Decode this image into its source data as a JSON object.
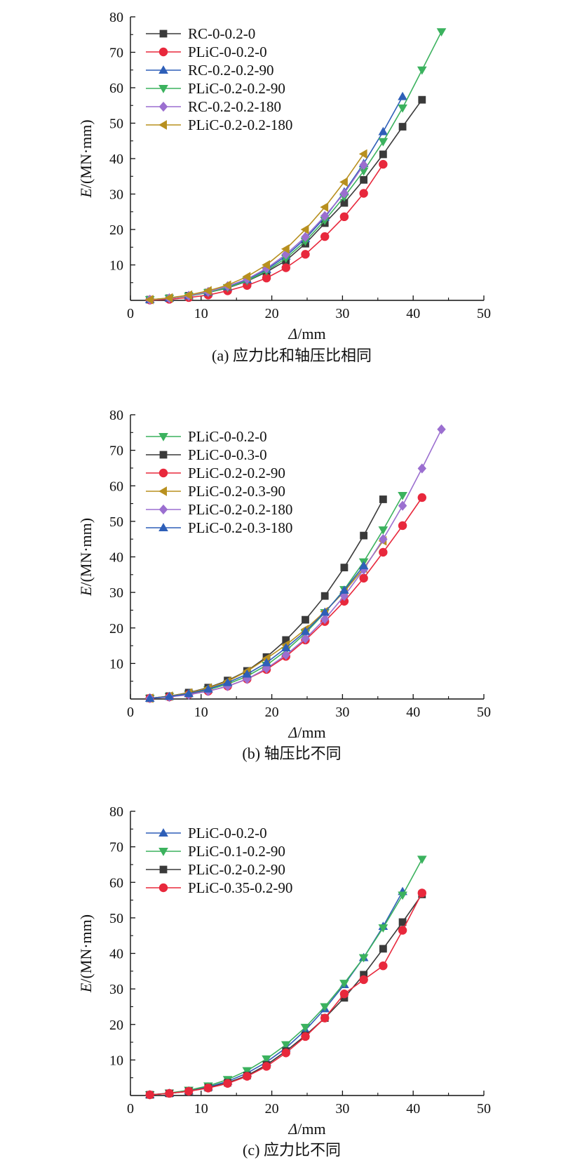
{
  "chart_data": [
    {
      "type": "line",
      "caption": "(a) 应力比和轴压比相同",
      "xlabel_italic": "Δ",
      "xlabel_unit": "/mm",
      "ylabel_italic": "E",
      "ylabel_unit": "/(MN·mm)",
      "xlim": [
        0,
        50
      ],
      "ylim": [
        0,
        80
      ],
      "xticks": [
        "0",
        "10",
        "20",
        "30",
        "40",
        "50"
      ],
      "yticks": [
        "10",
        "20",
        "30",
        "40",
        "50",
        "60",
        "70",
        "80"
      ],
      "legend_position": "top-left",
      "series": [
        {
          "name": "RC-0-0.2-0",
          "color": "#3a3a3a",
          "marker": "square",
          "x": [
            2.75,
            5.5,
            8.25,
            11,
            13.75,
            16.5,
            19.25,
            22,
            24.75,
            27.5,
            30.25,
            33,
            35.75,
            38.5,
            41.25
          ],
          "y": [
            0.2,
            0.6,
            1.3,
            2.2,
            3.5,
            5.4,
            8.0,
            11.2,
            16.0,
            21.8,
            27.5,
            34.0,
            41.2,
            49.0,
            56.6
          ]
        },
        {
          "name": "PLiC-0-0.2-0",
          "color": "#e8283c",
          "marker": "circle",
          "x": [
            2.75,
            5.5,
            8.25,
            11,
            13.75,
            16.5,
            19.25,
            22,
            24.75,
            27.5,
            30.25,
            33,
            35.75
          ],
          "y": [
            0.1,
            0.3,
            0.8,
            1.5,
            2.7,
            4.2,
            6.3,
            9.2,
            13.0,
            18.0,
            23.6,
            30.2,
            38.4
          ]
        },
        {
          "name": "RC-0.2-0.2-90",
          "color": "#2e5fb8",
          "marker": "triangle-up",
          "x": [
            2.75,
            5.5,
            8.25,
            11,
            13.75,
            16.5,
            19.25,
            22,
            24.75,
            27.5,
            30.25,
            33,
            35.75,
            38.5
          ],
          "y": [
            0.2,
            0.6,
            1.3,
            2.3,
            3.8,
            5.8,
            8.7,
            12.5,
            17.4,
            23.4,
            30.6,
            38.6,
            47.6,
            57.5
          ]
        },
        {
          "name": "PLiC-0.2-0.2-90",
          "color": "#3bb25e",
          "marker": "triangle-down",
          "x": [
            2.75,
            5.5,
            8.25,
            11,
            13.75,
            16.5,
            19.25,
            22,
            24.75,
            27.5,
            30.25,
            33,
            35.75,
            38.5,
            41.25,
            44
          ],
          "y": [
            0.2,
            0.6,
            1.2,
            2.2,
            3.6,
            5.5,
            8.3,
            11.9,
            16.7,
            22.6,
            29.2,
            36.5,
            44.8,
            54.3,
            65.0,
            75.8
          ]
        },
        {
          "name": "RC-0.2-0.2-180",
          "color": "#9b6fd0",
          "marker": "diamond",
          "x": [
            2.75,
            5.5,
            8.25,
            11,
            13.75,
            16.5,
            19.25,
            22,
            24.75,
            27.5,
            30.25,
            33
          ],
          "y": [
            0.2,
            0.6,
            1.3,
            2.4,
            4.0,
            6.0,
            9.0,
            13.0,
            17.9,
            23.8,
            30.2,
            38.2
          ]
        },
        {
          "name": "PLiC-0.2-0.2-180",
          "color": "#b8901f",
          "marker": "triangle-left",
          "x": [
            2.75,
            5.5,
            8.25,
            11,
            13.75,
            16.5,
            19.25,
            22,
            24.75,
            27.5,
            30.25,
            33
          ],
          "y": [
            0.2,
            0.7,
            1.5,
            2.7,
            4.3,
            6.7,
            10.0,
            14.5,
            20.0,
            26.3,
            33.4,
            41.3
          ]
        }
      ]
    },
    {
      "type": "line",
      "caption": "(b) 轴压比不同",
      "xlabel_italic": "Δ",
      "xlabel_unit": "/mm",
      "ylabel_italic": "E",
      "ylabel_unit": "/(MN·mm)",
      "xlim": [
        0,
        50
      ],
      "ylim": [
        0,
        80
      ],
      "xticks": [
        "0",
        "10",
        "20",
        "30",
        "40",
        "50"
      ],
      "yticks": [
        "10",
        "20",
        "30",
        "40",
        "50",
        "60",
        "70",
        "80"
      ],
      "legend_position": "top-left",
      "series": [
        {
          "name": "PLiC-0-0.2-0",
          "color": "#3bb25e",
          "marker": "triangle-down",
          "x": [
            2.75,
            5.5,
            8.25,
            11,
            13.75,
            16.5,
            19.25,
            22,
            24.75,
            27.5,
            30.25,
            33,
            35.75,
            38.5
          ],
          "y": [
            0.2,
            0.7,
            1.4,
            2.6,
            4.2,
            6.4,
            9.5,
            13.6,
            18.5,
            24.3,
            30.8,
            38.6,
            47.6,
            57.3
          ]
        },
        {
          "name": "PLiC-0-0.3-0",
          "color": "#3a3a3a",
          "marker": "square",
          "x": [
            2.75,
            5.5,
            8.25,
            11,
            13.75,
            16.5,
            19.25,
            22,
            24.75,
            27.5,
            30.25,
            33,
            35.75
          ],
          "y": [
            0.2,
            0.8,
            1.8,
            3.2,
            5.2,
            7.9,
            11.8,
            16.6,
            22.3,
            29.0,
            37.0,
            46.0,
            56.2
          ]
        },
        {
          "name": "PLiC-0.2-0.2-90",
          "color": "#e8283c",
          "marker": "circle",
          "x": [
            2.75,
            5.5,
            8.25,
            11,
            13.75,
            16.5,
            19.25,
            22,
            24.75,
            27.5,
            30.25,
            33,
            35.75,
            38.5,
            41.25
          ],
          "y": [
            0.2,
            0.6,
            1.3,
            2.2,
            3.6,
            5.6,
            8.3,
            12.0,
            16.6,
            21.8,
            27.5,
            34.0,
            41.3,
            48.8,
            56.7
          ]
        },
        {
          "name": "PLiC-0.2-0.3-90",
          "color": "#b8901f",
          "marker": "triangle-left",
          "x": [
            2.75,
            5.5,
            8.25,
            11,
            13.75,
            16.5,
            19.25,
            22,
            24.75,
            27.5,
            30.25,
            33,
            35.75
          ],
          "y": [
            0.2,
            0.8,
            1.7,
            3.1,
            5.0,
            7.8,
            11.4,
            15.2,
            19.6,
            24.6,
            30.2,
            36.8,
            44.5
          ]
        },
        {
          "name": "PLiC-0.2-0.2-180",
          "color": "#9b6fd0",
          "marker": "diamond",
          "x": [
            2.75,
            5.5,
            8.25,
            11,
            13.75,
            16.5,
            19.25,
            22,
            24.75,
            27.5,
            30.25,
            33,
            35.75,
            38.5,
            41.25,
            44
          ],
          "y": [
            0.2,
            0.6,
            1.2,
            2.2,
            3.6,
            5.6,
            8.6,
            12.4,
            17.0,
            22.5,
            29.0,
            36.4,
            45.0,
            54.4,
            64.9,
            75.9
          ]
        },
        {
          "name": "PLiC-0.2-0.3-180",
          "color": "#2e5fb8",
          "marker": "triangle-up",
          "x": [
            2.75,
            5.5,
            8.25,
            11,
            13.75,
            16.5,
            19.25,
            22,
            24.75,
            27.5,
            30.25,
            33
          ],
          "y": [
            0.2,
            0.7,
            1.5,
            2.8,
            4.6,
            7.0,
            10.2,
            14.4,
            19.0,
            24.4,
            30.6,
            37.5
          ]
        }
      ]
    },
    {
      "type": "line",
      "caption": "(c) 应力比不同",
      "xlabel_italic": "Δ",
      "xlabel_unit": "/mm",
      "ylabel_italic": "E",
      "ylabel_unit": "/(MN·mm)",
      "xlim": [
        0,
        50
      ],
      "ylim": [
        0,
        80
      ],
      "xticks": [
        "0",
        "10",
        "20",
        "30",
        "40",
        "50"
      ],
      "yticks": [
        "10",
        "20",
        "30",
        "40",
        "50",
        "60",
        "70",
        "80"
      ],
      "legend_position": "top-left",
      "series": [
        {
          "name": "PLiC-0-0.2-0",
          "color": "#2e5fb8",
          "marker": "triangle-up",
          "x": [
            2.75,
            5.5,
            8.25,
            11,
            13.75,
            16.5,
            19.25,
            22,
            24.75,
            27.5,
            30.25,
            33,
            35.75,
            38.5
          ],
          "y": [
            0.2,
            0.6,
            1.3,
            2.4,
            4.0,
            6.3,
            9.4,
            13.4,
            18.4,
            24.4,
            31.2,
            38.8,
            47.6,
            57.4
          ]
        },
        {
          "name": "PLiC-0.1-0.2-90",
          "color": "#3bb25e",
          "marker": "triangle-down",
          "x": [
            2.75,
            5.5,
            8.25,
            11,
            13.75,
            16.5,
            19.25,
            22,
            24.75,
            27.5,
            30.25,
            33,
            35.75,
            38.5,
            41.25
          ],
          "y": [
            0.2,
            0.7,
            1.5,
            2.7,
            4.5,
            7.0,
            10.3,
            14.3,
            19.2,
            25.0,
            31.6,
            38.8,
            47.2,
            56.4,
            66.5
          ]
        },
        {
          "name": "PLiC-0.2-0.2-90",
          "color": "#3a3a3a",
          "marker": "square",
          "x": [
            2.75,
            5.5,
            8.25,
            11,
            13.75,
            16.5,
            19.25,
            22,
            24.75,
            27.5,
            30.25,
            33,
            35.75,
            38.5,
            41.25
          ],
          "y": [
            0.2,
            0.6,
            1.2,
            2.2,
            3.6,
            5.6,
            8.6,
            12.5,
            16.9,
            21.8,
            27.5,
            34.0,
            41.3,
            48.8,
            56.6
          ]
        },
        {
          "name": "PLiC-0.35-0.2-90",
          "color": "#e8283c",
          "marker": "circle",
          "x": [
            2.75,
            5.5,
            8.25,
            11,
            13.75,
            16.5,
            19.25,
            22,
            24.75,
            27.5,
            30.25,
            33,
            35.75,
            38.5,
            41.25
          ],
          "y": [
            0.2,
            0.6,
            1.2,
            2.1,
            3.4,
            5.4,
            8.2,
            12.0,
            16.6,
            21.8,
            28.6,
            32.6,
            36.5,
            46.5,
            57.0
          ]
        }
      ]
    }
  ]
}
